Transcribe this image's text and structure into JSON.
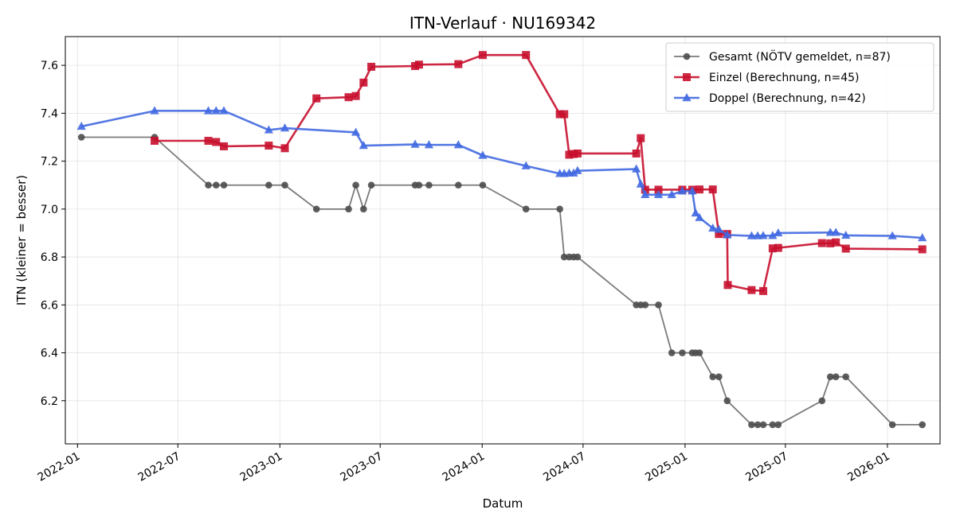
{
  "chart_data": {
    "type": "line",
    "title": "ITN-Verlauf · NU169342",
    "xlabel": "Datum",
    "ylabel": "ITN  (kleiner = besser)",
    "x_ticks": [
      "2022-01",
      "2022-07",
      "2023-01",
      "2023-07",
      "2024-01",
      "2024-07",
      "2025-01",
      "2025-07",
      "2026-01"
    ],
    "y_ticks": [
      "6.2",
      "6.4",
      "6.6",
      "6.8",
      "7.0",
      "7.2",
      "7.4",
      "7.6"
    ],
    "xlim": [
      "2021-12-10",
      "2026-04-06"
    ],
    "ylim": [
      6.02,
      7.72
    ],
    "grid": true,
    "legend_position": "top-right",
    "series": [
      {
        "name": "Gesamt (NÖTV gemeldet, n=87)",
        "color": "#4d4d4d",
        "marker": "circle",
        "points": [
          [
            "2022-01-08",
            7.3
          ],
          [
            "2022-05-20",
            7.3
          ],
          [
            "2022-08-25",
            7.1
          ],
          [
            "2022-09-08",
            7.1
          ],
          [
            "2022-09-22",
            7.1
          ],
          [
            "2022-12-12",
            7.1
          ],
          [
            "2023-01-10",
            7.1
          ],
          [
            "2023-03-08",
            7.0
          ],
          [
            "2023-05-05",
            7.0
          ],
          [
            "2023-05-18",
            7.1
          ],
          [
            "2023-06-01",
            7.0
          ],
          [
            "2023-06-15",
            7.1
          ],
          [
            "2023-09-02",
            7.1
          ],
          [
            "2023-09-09",
            7.1
          ],
          [
            "2023-09-27",
            7.1
          ],
          [
            "2023-11-19",
            7.1
          ],
          [
            "2024-01-02",
            7.1
          ],
          [
            "2024-03-20",
            7.0
          ],
          [
            "2024-05-20",
            7.0
          ],
          [
            "2024-05-28",
            6.8
          ],
          [
            "2024-06-06",
            6.8
          ],
          [
            "2024-06-14",
            6.8
          ],
          [
            "2024-06-21",
            6.8
          ],
          [
            "2024-10-05",
            6.6
          ],
          [
            "2024-10-13",
            6.6
          ],
          [
            "2024-10-21",
            6.6
          ],
          [
            "2024-11-14",
            6.6
          ],
          [
            "2024-12-08",
            6.4
          ],
          [
            "2024-12-27",
            6.4
          ],
          [
            "2025-01-14",
            6.4
          ],
          [
            "2025-01-20",
            6.4
          ],
          [
            "2025-01-27",
            6.4
          ],
          [
            "2025-02-20",
            6.3
          ],
          [
            "2025-03-03",
            6.3
          ],
          [
            "2025-03-18",
            6.2
          ],
          [
            "2025-05-01",
            6.1
          ],
          [
            "2025-05-12",
            6.1
          ],
          [
            "2025-05-22",
            6.1
          ],
          [
            "2025-06-08",
            6.1
          ],
          [
            "2025-06-18",
            6.1
          ],
          [
            "2025-09-05",
            6.2
          ],
          [
            "2025-09-20",
            6.3
          ],
          [
            "2025-09-30",
            6.3
          ],
          [
            "2025-10-18",
            6.3
          ],
          [
            "2026-01-10",
            6.1
          ],
          [
            "2026-03-05",
            6.1
          ]
        ]
      },
      {
        "name": "Einzel (Berechnung, n=45)",
        "color": "#c8102e",
        "marker": "square",
        "points": [
          [
            "2022-05-20",
            7.285
          ],
          [
            "2022-08-25",
            7.285
          ],
          [
            "2022-09-08",
            7.28
          ],
          [
            "2022-09-22",
            7.262
          ],
          [
            "2022-12-12",
            7.265
          ],
          [
            "2023-01-10",
            7.254
          ],
          [
            "2023-03-08",
            7.462
          ],
          [
            "2023-05-05",
            7.467
          ],
          [
            "2023-05-18",
            7.472
          ],
          [
            "2023-06-01",
            7.528
          ],
          [
            "2023-06-15",
            7.594
          ],
          [
            "2023-09-02",
            7.597
          ],
          [
            "2023-09-09",
            7.603
          ],
          [
            "2023-11-19",
            7.605
          ],
          [
            "2024-01-02",
            7.643
          ],
          [
            "2024-03-20",
            7.643
          ],
          [
            "2024-05-20",
            7.396
          ],
          [
            "2024-05-28",
            7.396
          ],
          [
            "2024-06-06",
            7.227
          ],
          [
            "2024-06-14",
            7.23
          ],
          [
            "2024-06-21",
            7.232
          ],
          [
            "2024-10-05",
            7.232
          ],
          [
            "2024-10-13",
            7.296
          ],
          [
            "2024-10-21",
            7.081
          ],
          [
            "2024-11-14",
            7.081
          ],
          [
            "2024-12-27",
            7.081
          ],
          [
            "2025-01-14",
            7.081
          ],
          [
            "2025-01-27",
            7.082
          ],
          [
            "2025-02-20",
            7.082
          ],
          [
            "2025-03-03",
            6.896
          ],
          [
            "2025-03-18",
            6.896
          ],
          [
            "2025-03-19",
            6.683
          ],
          [
            "2025-05-01",
            6.662
          ],
          [
            "2025-05-22",
            6.658
          ],
          [
            "2025-06-08",
            6.836
          ],
          [
            "2025-06-18",
            6.838
          ],
          [
            "2025-09-05",
            6.858
          ],
          [
            "2025-09-20",
            6.857
          ],
          [
            "2025-09-30",
            6.861
          ],
          [
            "2025-10-18",
            6.835
          ],
          [
            "2026-03-05",
            6.832
          ]
        ]
      },
      {
        "name": "Doppel (Berechnung, n=42)",
        "color": "#4169e1",
        "marker": "triangle",
        "points": [
          [
            "2022-01-08",
            7.345
          ],
          [
            "2022-05-20",
            7.41
          ],
          [
            "2022-08-25",
            7.41
          ],
          [
            "2022-09-08",
            7.41
          ],
          [
            "2022-09-22",
            7.41
          ],
          [
            "2022-12-12",
            7.33
          ],
          [
            "2023-01-10",
            7.338
          ],
          [
            "2023-05-18",
            7.32
          ],
          [
            "2023-06-01",
            7.265
          ],
          [
            "2023-09-02",
            7.27
          ],
          [
            "2023-09-27",
            7.268
          ],
          [
            "2023-11-19",
            7.268
          ],
          [
            "2024-01-02",
            7.224
          ],
          [
            "2024-03-20",
            7.18
          ],
          [
            "2024-05-20",
            7.148
          ],
          [
            "2024-05-28",
            7.148
          ],
          [
            "2024-06-06",
            7.15
          ],
          [
            "2024-06-14",
            7.15
          ],
          [
            "2024-06-21",
            7.16
          ],
          [
            "2024-10-05",
            7.167
          ],
          [
            "2024-10-13",
            7.104
          ],
          [
            "2024-10-21",
            7.06
          ],
          [
            "2024-11-14",
            7.06
          ],
          [
            "2024-12-08",
            7.06
          ],
          [
            "2024-12-27",
            7.075
          ],
          [
            "2025-01-14",
            7.075
          ],
          [
            "2025-01-20",
            6.983
          ],
          [
            "2025-01-27",
            6.964
          ],
          [
            "2025-02-20",
            6.92
          ],
          [
            "2025-03-03",
            6.915
          ],
          [
            "2025-03-18",
            6.892
          ],
          [
            "2025-05-01",
            6.888
          ],
          [
            "2025-05-12",
            6.888
          ],
          [
            "2025-05-22",
            6.889
          ],
          [
            "2025-06-08",
            6.889
          ],
          [
            "2025-06-18",
            6.9
          ],
          [
            "2025-09-20",
            6.902
          ],
          [
            "2025-09-30",
            6.902
          ],
          [
            "2025-10-18",
            6.89
          ],
          [
            "2026-01-10",
            6.888
          ],
          [
            "2026-03-05",
            6.88
          ]
        ]
      }
    ]
  }
}
